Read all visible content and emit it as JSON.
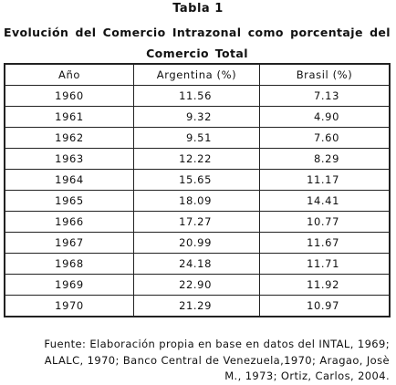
{
  "header": {
    "title": "Tabla 1",
    "subtitle": "Evolución del Comercio Intrazonal como porcentaje del Comercio Total"
  },
  "table": {
    "columns": [
      "Año",
      "Argentina (%)",
      "Brasil (%)"
    ],
    "rows": [
      [
        "1960",
        "11.56",
        "7.13"
      ],
      [
        "1961",
        "9.32",
        "4.90"
      ],
      [
        "1962",
        "9.51",
        "7.60"
      ],
      [
        "1963",
        "12.22",
        "8.29"
      ],
      [
        "1964",
        "15.65",
        "11.17"
      ],
      [
        "1965",
        "18.09",
        "14.41"
      ],
      [
        "1966",
        "17.27",
        "10.77"
      ],
      [
        "1967",
        "20.99",
        "11.67"
      ],
      [
        "1968",
        "24.18",
        "11.71"
      ],
      [
        "1969",
        "22.90",
        "11.92"
      ],
      [
        "1970",
        "21.29",
        "10.97"
      ]
    ]
  },
  "footnote": {
    "lines": [
      "Fuente: Elaboración propia en base en datos del INTAL, 1969;",
      "ALALC, 1970; Banco Central de Venezuela,1970; Aragao, Josè",
      "M., 1973; Ortiz, Carlos, 2004."
    ]
  }
}
